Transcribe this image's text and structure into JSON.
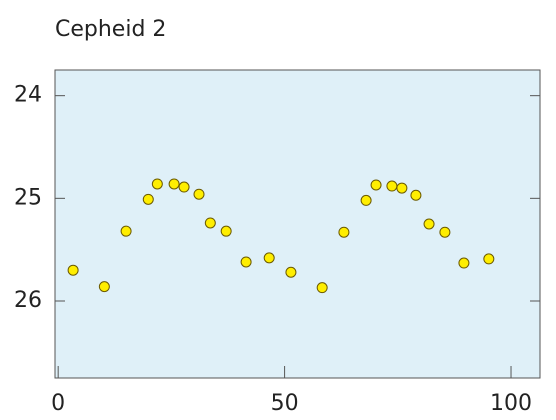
{
  "chart_data": {
    "type": "scatter",
    "title": "Cepheid 2",
    "x": [
      3.3,
      10.2,
      15.0,
      19.9,
      21.9,
      25.6,
      27.8,
      31.1,
      33.6,
      37.1,
      41.5,
      46.6,
      51.4,
      58.3,
      63.1,
      68.0,
      70.2,
      73.7,
      75.9,
      79.0,
      81.9,
      85.4,
      89.6,
      95.1
    ],
    "values": [
      25.7,
      25.86,
      25.32,
      25.01,
      24.86,
      24.86,
      24.89,
      24.96,
      25.24,
      25.32,
      25.62,
      25.58,
      25.72,
      25.87,
      25.33,
      25.02,
      24.87,
      24.88,
      24.9,
      24.97,
      25.25,
      25.33,
      25.63,
      25.59
    ],
    "color": "#ffee00",
    "xlim": [
      -0.7,
      106.4
    ],
    "xticks": [
      0,
      50,
      100
    ],
    "ylim": [
      26.75,
      23.75
    ],
    "yticks": [
      24,
      25,
      26
    ]
  }
}
